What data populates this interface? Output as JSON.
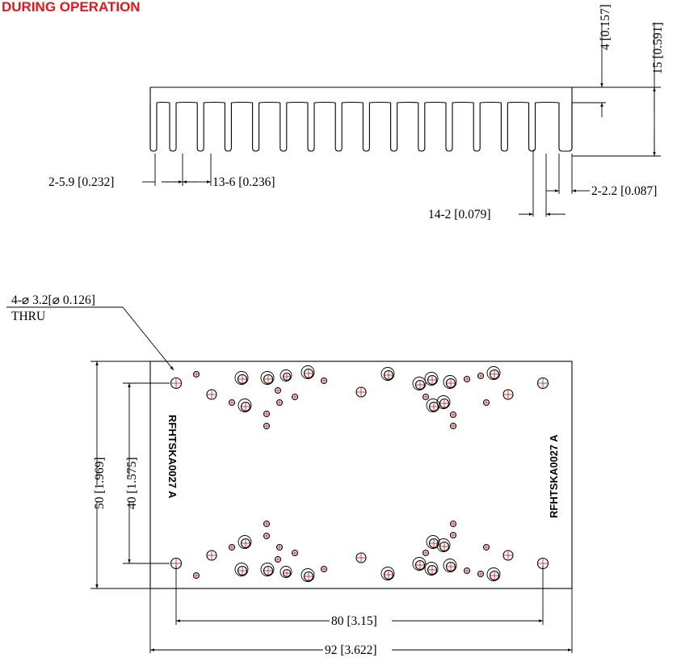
{
  "header": {
    "title": "DURING OPERATION"
  },
  "colors": {
    "title": "#e8141c",
    "center_marks": "#d31010",
    "lines": "#000000"
  },
  "side_view": {
    "dim_width_outer": "2-5.9 [0.232]",
    "dim_fin_pitch": "13-6 [0.236]",
    "dim_end_fin": "2-2.2 [0.087]",
    "dim_fin_thickness": "14-2 [0.079]",
    "dim_base_thickness": "4 [0.157]",
    "dim_total_height": "15 [0.591]"
  },
  "top_view": {
    "hole_callout_line1": "4-⌀ 3.2[⌀ 0.126]",
    "hole_callout_line2": "THRU",
    "part_number_left": "RFHTSKA0027 A",
    "part_number_right": "RFHTSKA0027 A",
    "dim_outer_height": "50 [1.969]",
    "dim_hole_spacing_v": "40 [1.575]",
    "dim_hole_spacing_h": "80 [3.15]",
    "dim_outer_width": "92 [3.622]"
  }
}
